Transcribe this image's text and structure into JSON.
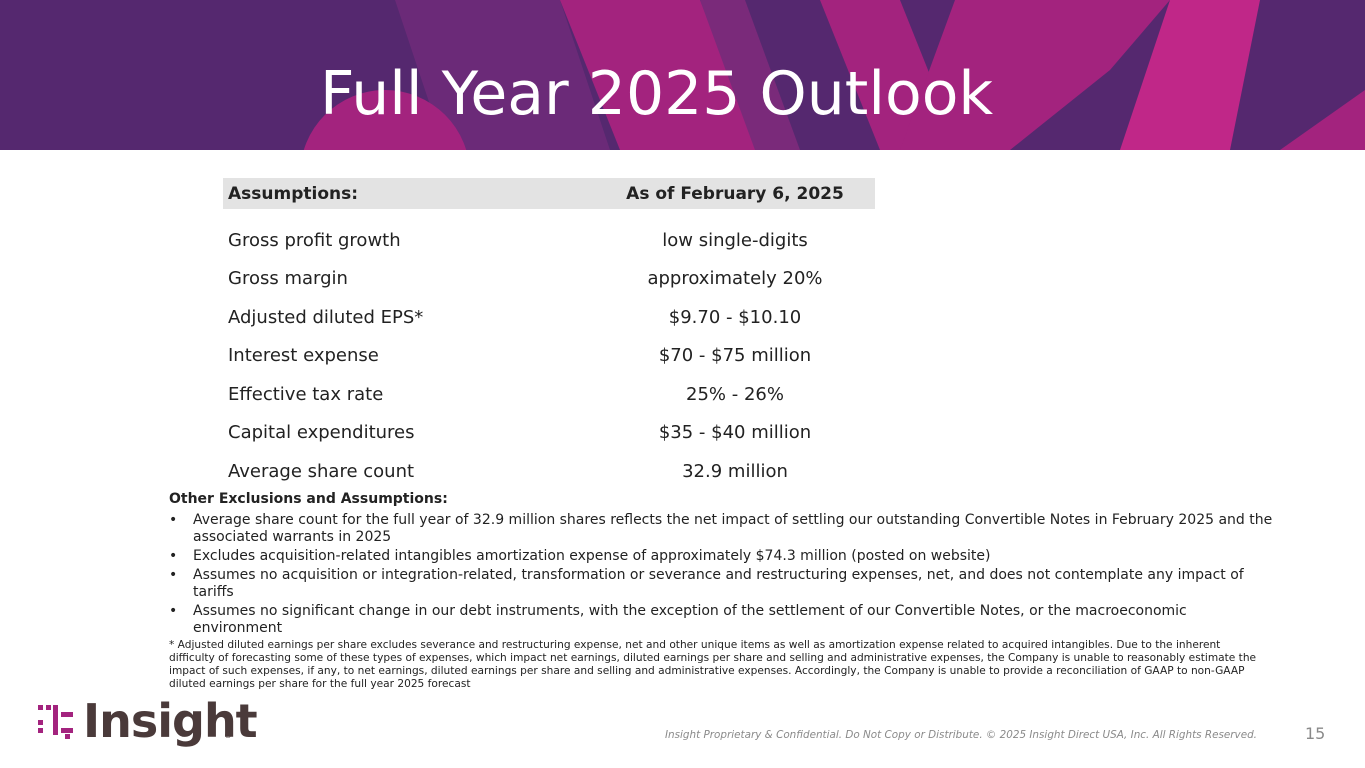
{
  "slide": {
    "title": "Full Year 2025 Outlook",
    "page_number": "15",
    "confidential_notice": "Insight Proprietary & Confidential. Do Not Copy or Distribute. © 2025 Insight Direct USA, Inc. All Rights Reserved."
  },
  "colors": {
    "banner_purple": "#55286f",
    "banner_magenta": "#a3237e",
    "header_row_gray": "#e3e3e3"
  },
  "table": {
    "header_left": "Assumptions:",
    "header_right": "As of February 6, 2025",
    "rows": [
      {
        "label": "Gross profit growth",
        "value": "low single-digits"
      },
      {
        "label": "Gross margin",
        "value": "approximately 20%"
      },
      {
        "label": "Adjusted diluted EPS*",
        "value": "$9.70 - $10.10"
      },
      {
        "label": "Interest expense",
        "value": "$70 - $75 million"
      },
      {
        "label": "Effective tax rate",
        "value": "25% - 26%"
      },
      {
        "label": "Capital expenditures",
        "value": "$35 - $40 million"
      },
      {
        "label": "Average share count",
        "value": "32.9 million"
      }
    ]
  },
  "other": {
    "heading": "Other Exclusions and Assumptions:",
    "bullet_symbol": "•",
    "bullets": [
      "Average share count for the full year of 32.9 million shares reflects the net impact of settling our outstanding Convertible Notes in February 2025 and the associated warrants in 2025",
      "Excludes acquisition-related intangibles amortization expense of approximately $74.3 million (posted on website)",
      "Assumes no acquisition or integration-related, transformation or severance and restructuring expenses, net, and does not contemplate any impact of tariffs",
      "Assumes no significant change in our debt instruments, with the exception of the settlement of our Convertible Notes, or the macroeconomic environment"
    ]
  },
  "footnote": "* Adjusted diluted earnings per share excludes severance and restructuring expense, net and other unique items as well as amortization expense related to acquired intangibles. Due to the inherent difficulty of forecasting some of these types of expenses, which impact net earnings, diluted earnings per share and selling and administrative expenses, the Company is unable to reasonably estimate the impact of such expenses, if any, to net earnings, diluted earnings per share and selling and administrative expenses. Accordingly, the Company is unable to provide a reconciliation of GAAP to non-GAAP diluted earnings per share for the full year 2025 forecast",
  "logo": {
    "text": "Insight",
    "icon": "insight-logo-icon",
    "registered": "®"
  }
}
